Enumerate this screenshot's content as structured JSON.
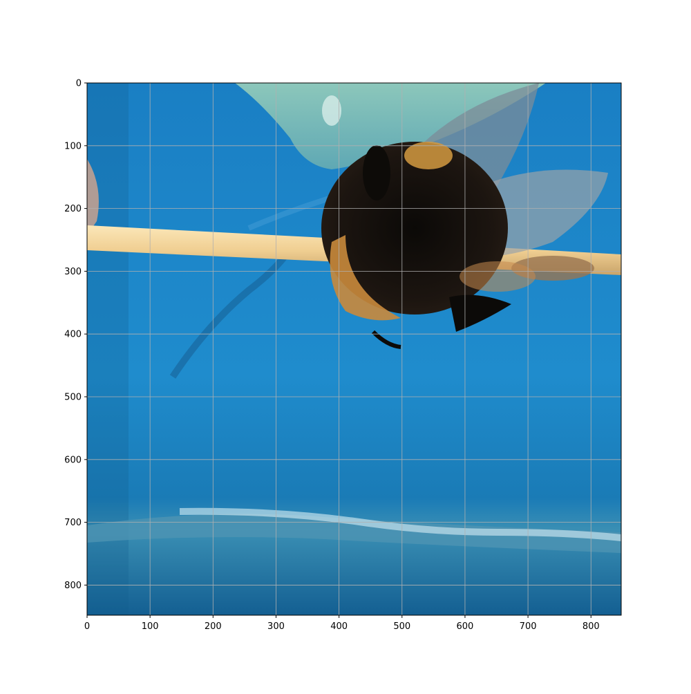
{
  "axes": {
    "x_range": [
      0,
      848
    ],
    "y_range": [
      0,
      848
    ],
    "y_inverted": true,
    "grid": true,
    "grid_color": "#b0b0b0",
    "x_ticks": [
      {
        "value": 0,
        "label": "0"
      },
      {
        "value": 100,
        "label": "100"
      },
      {
        "value": 200,
        "label": "200"
      },
      {
        "value": 300,
        "label": "300"
      },
      {
        "value": 400,
        "label": "400"
      },
      {
        "value": 500,
        "label": "500"
      },
      {
        "value": 600,
        "label": "600"
      },
      {
        "value": 700,
        "label": "700"
      },
      {
        "value": 800,
        "label": "800"
      }
    ],
    "y_ticks": [
      {
        "value": 0,
        "label": "0"
      },
      {
        "value": 100,
        "label": "100"
      },
      {
        "value": 200,
        "label": "200"
      },
      {
        "value": 300,
        "label": "300"
      },
      {
        "value": 400,
        "label": "400"
      },
      {
        "value": 500,
        "label": "500"
      },
      {
        "value": 600,
        "label": "600"
      },
      {
        "value": 700,
        "label": "700"
      },
      {
        "value": 800,
        "label": "800"
      }
    ]
  },
  "image": {
    "subject": "bumblebee",
    "colors": {
      "water": "#1e86c8",
      "water_dark": "#0f5f95",
      "stick": "#f1d49a",
      "bee_body": "#16120e",
      "bee_orange": "#c98a3c",
      "wing": "#8a96a0",
      "top_shape": "#8ec9c0"
    }
  }
}
